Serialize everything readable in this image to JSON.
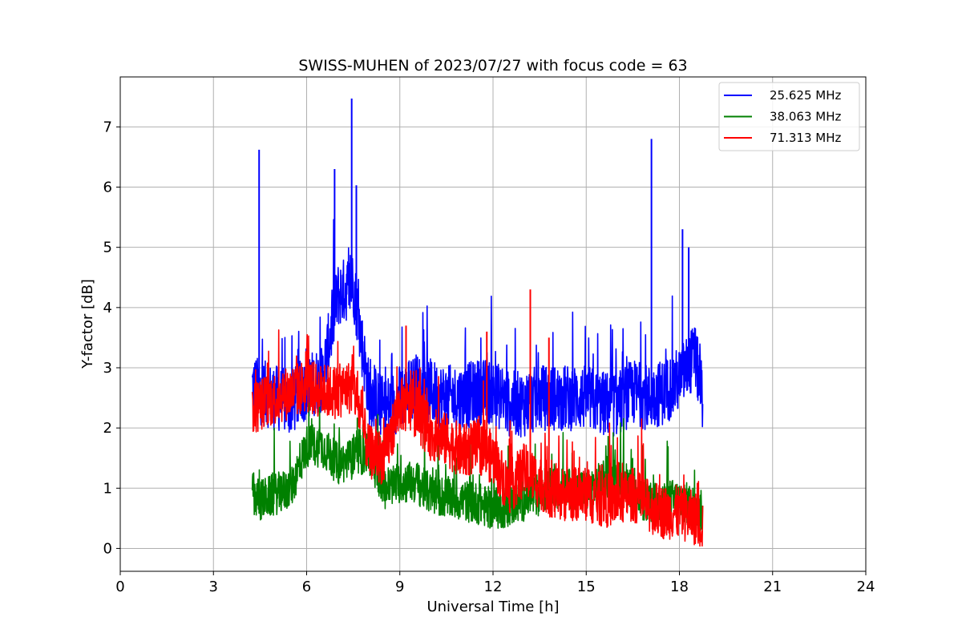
{
  "chart_data": {
    "type": "line",
    "title": "SWISS-MUHEN of 2023/07/27 with focus code = 63",
    "xlabel": "Universal Time [h]",
    "ylabel": "Y-factor [dB]",
    "xlim": [
      0,
      24
    ],
    "ylim": [
      -0.38,
      7.83
    ],
    "xticks": [
      0,
      3,
      6,
      9,
      12,
      15,
      18,
      21,
      24
    ],
    "xtick_labels": [
      "0",
      "3",
      "6",
      "9",
      "12",
      "15",
      "18",
      "21",
      "24"
    ],
    "yticks": [
      0,
      1,
      2,
      3,
      4,
      5,
      6,
      7
    ],
    "ytick_labels": [
      "0",
      "1",
      "2",
      "3",
      "4",
      "5",
      "6",
      "7"
    ],
    "grid": true,
    "legend_position": "top-right",
    "series": [
      {
        "name": "25.625 MHz",
        "color": "#0000ff",
        "x": [
          4.25,
          4.5,
          5.0,
          5.5,
          6.0,
          6.5,
          7.0,
          7.5,
          8.0,
          8.5,
          9.0,
          9.5,
          10.0,
          10.5,
          11.0,
          11.5,
          12.0,
          12.5,
          13.0,
          13.5,
          14.0,
          14.5,
          15.0,
          15.5,
          16.0,
          16.5,
          17.0,
          17.5,
          18.0,
          18.5,
          18.75
        ],
        "values": [
          2.7,
          2.6,
          2.5,
          2.4,
          2.7,
          2.8,
          4.2,
          4.4,
          2.6,
          2.3,
          2.5,
          2.7,
          2.6,
          2.5,
          2.5,
          2.6,
          2.6,
          2.4,
          2.4,
          2.5,
          2.5,
          2.5,
          2.5,
          2.4,
          2.4,
          2.6,
          2.5,
          2.6,
          2.8,
          3.2,
          2.5
        ],
        "peaks": [
          [
            4.47,
            6.62
          ],
          [
            7.45,
            7.47
          ],
          [
            6.9,
            6.3
          ],
          [
            7.6,
            6.03
          ],
          [
            17.1,
            6.8
          ],
          [
            18.1,
            5.3
          ],
          [
            18.3,
            5.0
          ]
        ]
      },
      {
        "name": "38.063 MHz",
        "color": "#008000",
        "x": [
          4.25,
          4.5,
          5.0,
          5.5,
          6.0,
          6.5,
          7.0,
          7.5,
          8.0,
          8.5,
          9.0,
          9.5,
          10.0,
          10.5,
          11.0,
          11.5,
          12.0,
          12.5,
          13.0,
          13.5,
          14.0,
          14.5,
          15.0,
          15.5,
          16.0,
          16.5,
          17.0,
          17.5,
          18.0,
          18.5,
          18.75
        ],
        "values": [
          0.9,
          0.8,
          0.9,
          1.0,
          1.7,
          1.7,
          1.4,
          1.5,
          1.6,
          1.0,
          1.1,
          1.1,
          0.9,
          0.85,
          0.8,
          0.75,
          0.65,
          0.7,
          0.8,
          0.9,
          1.0,
          1.0,
          0.95,
          1.1,
          1.2,
          1.0,
          0.7,
          0.8,
          0.8,
          0.7,
          0.6
        ]
      },
      {
        "name": "71.313 MHz",
        "color": "#ff0000",
        "x": [
          4.25,
          4.5,
          5.0,
          5.5,
          6.0,
          6.5,
          7.0,
          7.5,
          8.0,
          8.5,
          9.0,
          9.5,
          10.0,
          10.5,
          11.0,
          11.5,
          12.0,
          12.5,
          13.0,
          13.5,
          14.0,
          14.5,
          15.0,
          15.5,
          16.0,
          16.5,
          17.0,
          17.5,
          18.0,
          18.5,
          18.75
        ],
        "values": [
          2.3,
          2.4,
          2.5,
          2.6,
          2.7,
          2.6,
          2.6,
          2.7,
          1.6,
          1.5,
          2.4,
          2.3,
          1.9,
          1.8,
          1.6,
          1.7,
          1.5,
          1.0,
          1.3,
          1.1,
          0.9,
          0.9,
          0.9,
          0.8,
          0.8,
          0.9,
          0.7,
          0.6,
          0.6,
          0.5,
          0.4
        ],
        "peaks": [
          [
            13.2,
            4.3
          ],
          [
            9.2,
            3.7
          ],
          [
            11.8,
            3.6
          ],
          [
            13.8,
            3.5
          ]
        ]
      }
    ]
  }
}
